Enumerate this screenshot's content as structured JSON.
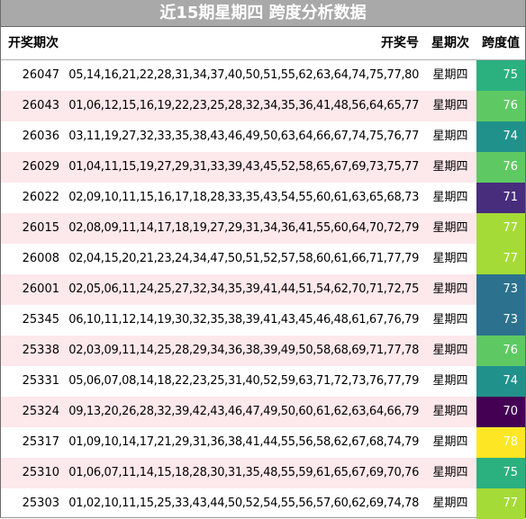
{
  "title": "近15期星期四 跨度分析数据",
  "columns": {
    "issue": "开奖期次",
    "numbers": "开奖号",
    "weekday": "星期次",
    "span": "跨度值"
  },
  "rows": [
    {
      "issue": "26047",
      "numbers": "05,14,16,21,22,28,31,34,37,40,50,51,55,62,63,64,74,75,77,80",
      "weekday": "星期四",
      "span": "75",
      "color": "#2bb07f"
    },
    {
      "issue": "26043",
      "numbers": "01,06,12,15,16,19,22,23,25,28,32,34,35,36,41,48,56,64,65,77",
      "weekday": "星期四",
      "span": "76",
      "color": "#5ec962"
    },
    {
      "issue": "26036",
      "numbers": "03,11,19,27,32,33,35,38,43,46,49,50,63,64,66,67,74,75,76,77",
      "weekday": "星期四",
      "span": "74",
      "color": "#21918c"
    },
    {
      "issue": "26029",
      "numbers": "01,04,11,15,19,27,29,31,33,39,43,45,52,58,65,67,69,73,75,77",
      "weekday": "星期四",
      "span": "76",
      "color": "#5ec962"
    },
    {
      "issue": "26022",
      "numbers": "02,09,10,11,15,16,17,18,28,33,35,43,54,55,60,61,63,65,68,73",
      "weekday": "星期四",
      "span": "71",
      "color": "#472d7b"
    },
    {
      "issue": "26015",
      "numbers": "02,08,09,11,14,17,18,19,27,29,31,34,36,41,55,60,64,70,72,79",
      "weekday": "星期四",
      "span": "77",
      "color": "#a5db36"
    },
    {
      "issue": "26008",
      "numbers": "02,04,15,20,21,23,24,34,47,50,51,52,57,58,60,61,66,71,77,79",
      "weekday": "星期四",
      "span": "77",
      "color": "#a5db36"
    },
    {
      "issue": "26001",
      "numbers": "02,05,06,11,24,25,27,32,34,35,39,41,44,51,54,62,70,71,72,75",
      "weekday": "星期四",
      "span": "73",
      "color": "#2c728e"
    },
    {
      "issue": "25345",
      "numbers": "06,10,11,12,14,19,30,32,35,38,39,41,43,45,46,48,61,67,76,79",
      "weekday": "星期四",
      "span": "73",
      "color": "#2c728e"
    },
    {
      "issue": "25338",
      "numbers": "02,03,09,11,14,25,28,29,34,36,38,39,49,50,58,68,69,71,77,78",
      "weekday": "星期四",
      "span": "76",
      "color": "#5ec962"
    },
    {
      "issue": "25331",
      "numbers": "05,06,07,08,14,18,22,23,25,31,40,52,59,63,71,72,73,76,77,79",
      "weekday": "星期四",
      "span": "74",
      "color": "#21918c"
    },
    {
      "issue": "25324",
      "numbers": "09,13,20,26,28,32,39,42,43,46,47,49,50,60,61,62,63,64,66,79",
      "weekday": "星期四",
      "span": "70",
      "color": "#440154"
    },
    {
      "issue": "25317",
      "numbers": "01,09,10,14,17,21,29,31,36,38,41,44,55,56,58,62,67,68,74,79",
      "weekday": "星期四",
      "span": "78",
      "color": "#fde725"
    },
    {
      "issue": "25310",
      "numbers": "01,06,07,11,14,15,18,28,30,31,35,48,55,59,61,65,67,69,70,76",
      "weekday": "星期四",
      "span": "75",
      "color": "#2bb07f"
    },
    {
      "issue": "25303",
      "numbers": "01,02,10,11,15,25,33,43,44,50,52,54,55,56,57,60,62,69,74,78",
      "weekday": "星期四",
      "span": "77",
      "color": "#a5db36"
    }
  ]
}
